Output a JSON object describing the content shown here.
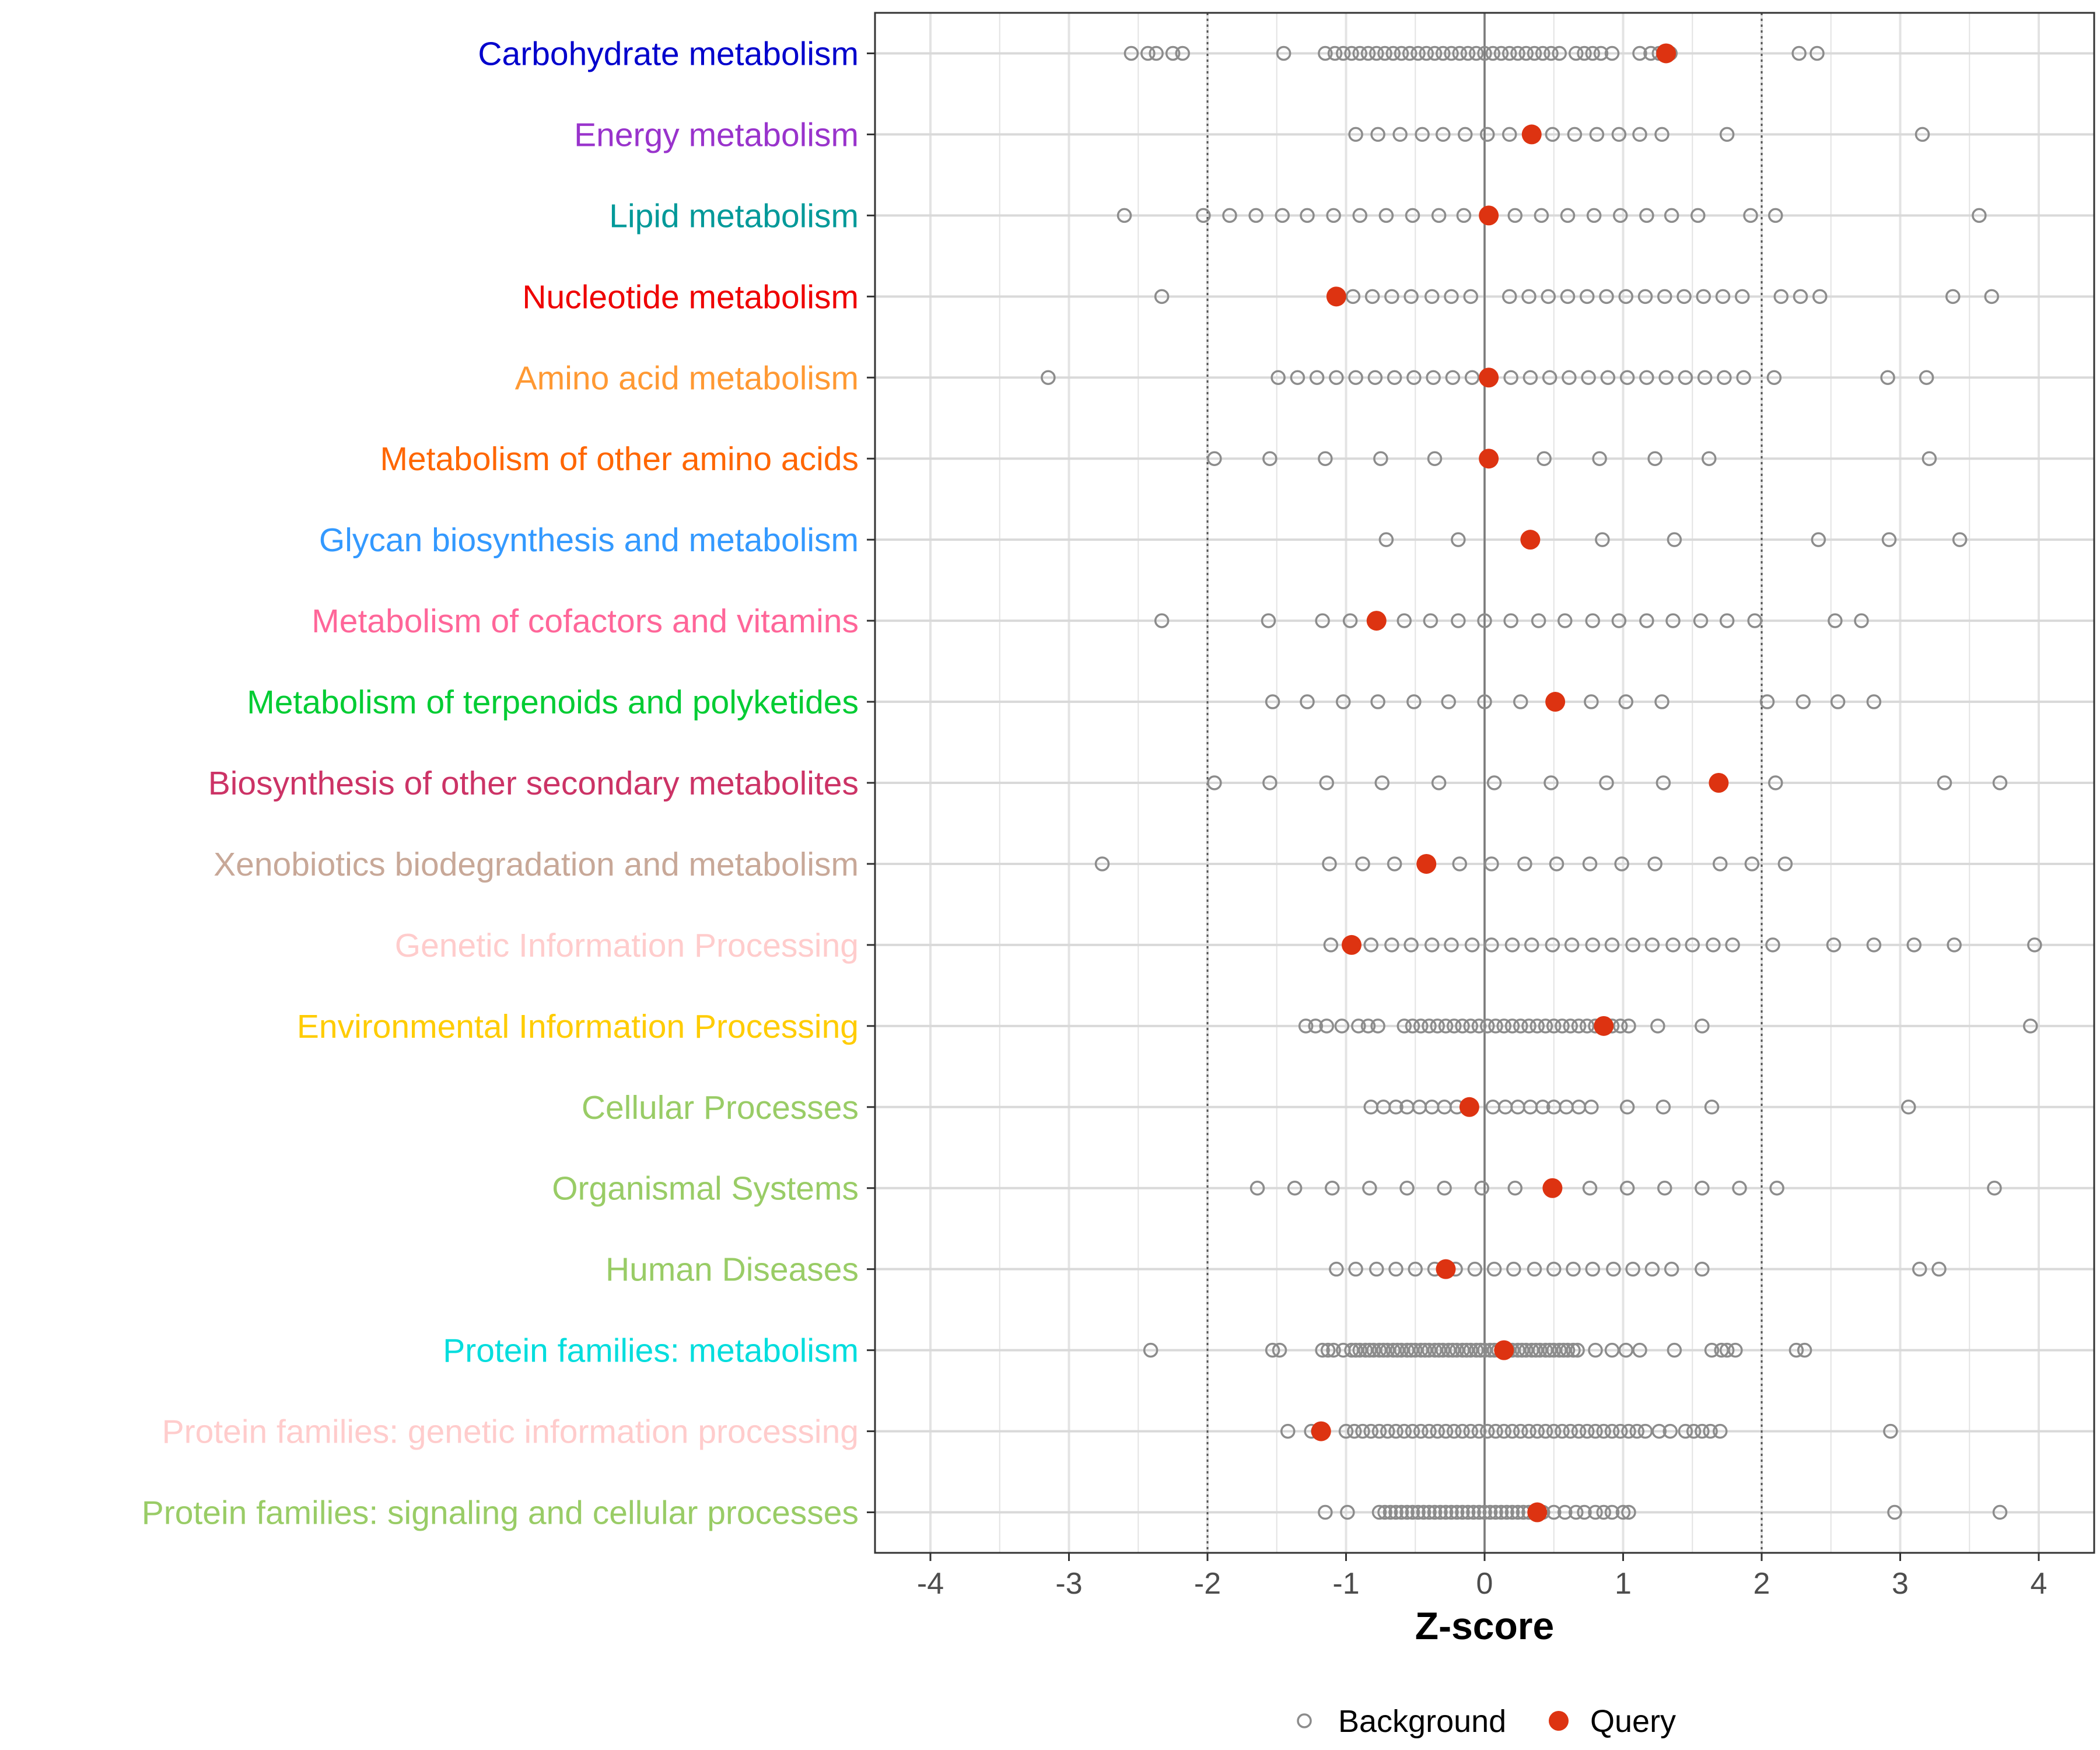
{
  "chart_data": {
    "type": "scatter",
    "xlabel": "Z-score",
    "xlim": [
      -4.4,
      4.4
    ],
    "xticks": [
      -4,
      -3,
      -2,
      -1,
      0,
      1,
      2,
      3,
      4
    ],
    "reference_lines": {
      "solid": [
        0
      ],
      "dotted": [
        -2,
        2
      ]
    },
    "legend": {
      "position": "bottom",
      "entries": [
        "Background",
        "Query"
      ]
    },
    "colors": {
      "background_marker": "#8c8c8c",
      "query_marker": "#dd3311"
    },
    "categories": [
      {
        "name": "Carbohydrate metabolism",
        "color": "#0000cc",
        "query": 1.31,
        "background": [
          -2.55,
          -2.43,
          -2.37,
          -2.25,
          -2.18,
          -1.45,
          -1.15,
          -1.08,
          -1.02,
          -0.96,
          -0.9,
          -0.84,
          -0.78,
          -0.72,
          -0.66,
          -0.6,
          -0.54,
          -0.48,
          -0.42,
          -0.36,
          -0.3,
          -0.24,
          -0.18,
          -0.12,
          -0.06,
          0.0,
          0.06,
          0.12,
          0.18,
          0.24,
          0.3,
          0.36,
          0.42,
          0.48,
          0.54,
          0.66,
          0.72,
          0.78,
          0.84,
          0.92,
          1.12,
          1.2,
          1.26,
          1.34,
          2.27,
          2.4
        ]
      },
      {
        "name": "Energy metabolism",
        "color": "#9933cc",
        "query": 0.34,
        "background": [
          -0.93,
          -0.77,
          -0.61,
          -0.45,
          -0.3,
          -0.14,
          0.02,
          0.18,
          0.49,
          0.65,
          0.81,
          0.97,
          1.12,
          1.28,
          1.75,
          3.16
        ]
      },
      {
        "name": "Lipid metabolism",
        "color": "#009999",
        "query": 0.03,
        "background": [
          -2.6,
          -2.03,
          -1.84,
          -1.65,
          -1.46,
          -1.28,
          -1.09,
          -0.9,
          -0.71,
          -0.52,
          -0.33,
          -0.15,
          0.22,
          0.41,
          0.6,
          0.79,
          0.98,
          1.17,
          1.35,
          1.54,
          1.92,
          2.1,
          3.57
        ]
      },
      {
        "name": "Nucleotide metabolism",
        "color": "#ee0000",
        "query": -1.07,
        "background": [
          -2.33,
          -0.95,
          -0.81,
          -0.67,
          -0.53,
          -0.38,
          -0.24,
          -0.1,
          0.18,
          0.32,
          0.46,
          0.6,
          0.74,
          0.88,
          1.02,
          1.16,
          1.3,
          1.44,
          1.58,
          1.72,
          1.86,
          2.14,
          2.28,
          2.42,
          3.38,
          3.66
        ]
      },
      {
        "name": "Amino acid metabolism",
        "color": "#ff9933",
        "query": 0.03,
        "background": [
          -3.15,
          -1.49,
          -1.35,
          -1.21,
          -1.07,
          -0.93,
          -0.79,
          -0.65,
          -0.51,
          -0.37,
          -0.23,
          -0.09,
          0.19,
          0.33,
          0.47,
          0.61,
          0.75,
          0.89,
          1.03,
          1.17,
          1.31,
          1.45,
          1.59,
          1.73,
          1.87,
          2.09,
          2.91,
          3.19
        ]
      },
      {
        "name": "Metabolism of other amino acids",
        "color": "#ff6600",
        "query": 0.03,
        "background": [
          -1.95,
          -1.55,
          -1.15,
          -0.75,
          -0.36,
          0.43,
          0.83,
          1.23,
          1.62,
          3.21
        ]
      },
      {
        "name": "Glycan biosynthesis and metabolism",
        "color": "#3399ff",
        "query": 0.33,
        "background": [
          -0.71,
          -0.19,
          0.85,
          1.37,
          2.41,
          2.92,
          3.43
        ]
      },
      {
        "name": "Metabolism of cofactors and vitamins",
        "color": "#ff6699",
        "query": -0.78,
        "background": [
          -2.33,
          -1.56,
          -1.17,
          -0.97,
          -0.58,
          -0.39,
          -0.19,
          0.0,
          0.19,
          0.39,
          0.58,
          0.78,
          0.97,
          1.17,
          1.36,
          1.56,
          1.75,
          1.95,
          2.53,
          2.72
        ]
      },
      {
        "name": "Metabolism of terpenoids and polyketides",
        "color": "#00cc33",
        "query": 0.51,
        "background": [
          -1.53,
          -1.28,
          -1.02,
          -0.77,
          -0.51,
          -0.26,
          0.0,
          0.26,
          0.77,
          1.02,
          1.28,
          2.04,
          2.3,
          2.55,
          2.81
        ]
      },
      {
        "name": "Biosynthesis of other secondary metabolites",
        "color": "#cc3366",
        "query": 1.69,
        "background": [
          -1.95,
          -1.55,
          -1.14,
          -0.74,
          -0.33,
          0.07,
          0.48,
          0.88,
          1.29,
          2.1,
          3.32,
          3.72
        ]
      },
      {
        "name": "Xenobiotics biodegradation and metabolism",
        "color": "#c8a898",
        "query": -0.42,
        "background": [
          -2.76,
          -1.12,
          -0.88,
          -0.65,
          -0.18,
          0.05,
          0.29,
          0.52,
          0.76,
          0.99,
          1.23,
          1.7,
          1.93,
          2.17
        ]
      },
      {
        "name": "Genetic Information Processing",
        "color": "#ffcccc",
        "query": -0.96,
        "background": [
          -1.11,
          -0.82,
          -0.67,
          -0.53,
          -0.38,
          -0.24,
          -0.09,
          0.05,
          0.2,
          0.34,
          0.49,
          0.63,
          0.78,
          0.92,
          1.07,
          1.21,
          1.36,
          1.5,
          1.65,
          1.79,
          2.08,
          2.52,
          2.81,
          3.1,
          3.39,
          3.97
        ]
      },
      {
        "name": "Environmental Information Processing",
        "color": "#ffcc00",
        "query": 0.86,
        "background": [
          -1.29,
          -1.22,
          -1.14,
          -1.03,
          -0.91,
          -0.84,
          -0.77,
          -0.58,
          -0.52,
          -0.46,
          -0.4,
          -0.34,
          -0.28,
          -0.22,
          -0.16,
          -0.1,
          -0.04,
          0.02,
          0.08,
          0.14,
          0.2,
          0.26,
          0.32,
          0.38,
          0.44,
          0.5,
          0.56,
          0.62,
          0.68,
          0.74,
          0.8,
          0.92,
          0.98,
          1.04,
          1.25,
          1.57,
          3.94
        ]
      },
      {
        "name": "Cellular Processes",
        "color": "#99cc66",
        "query": -0.11,
        "background": [
          -0.82,
          -0.73,
          -0.64,
          -0.56,
          -0.47,
          -0.38,
          -0.29,
          -0.2,
          0.06,
          0.15,
          0.24,
          0.33,
          0.42,
          0.5,
          0.59,
          0.68,
          0.77,
          1.03,
          1.29,
          1.64,
          3.06
        ]
      },
      {
        "name": "Organismal Systems",
        "color": "#99cc66",
        "query": 0.49,
        "background": [
          -1.64,
          -1.37,
          -1.1,
          -0.83,
          -0.56,
          -0.29,
          -0.02,
          0.22,
          0.76,
          1.03,
          1.3,
          1.57,
          1.84,
          2.11,
          3.68
        ]
      },
      {
        "name": "Human Diseases",
        "color": "#99cc66",
        "query": -0.28,
        "background": [
          -1.07,
          -0.93,
          -0.78,
          -0.64,
          -0.5,
          -0.36,
          -0.21,
          -0.07,
          0.07,
          0.21,
          0.36,
          0.5,
          0.64,
          0.78,
          0.93,
          1.07,
          1.21,
          1.35,
          1.57,
          3.14,
          3.28
        ]
      },
      {
        "name": "Protein families: metabolism",
        "color": "#00dddd",
        "query": 0.14,
        "background": [
          -2.41,
          -1.53,
          -1.48,
          -1.17,
          -1.13,
          -1.09,
          -1.02,
          -0.96,
          -0.93,
          -0.9,
          -0.86,
          -0.83,
          -0.8,
          -0.76,
          -0.73,
          -0.7,
          -0.66,
          -0.63,
          -0.6,
          -0.56,
          -0.53,
          -0.5,
          -0.46,
          -0.43,
          -0.4,
          -0.36,
          -0.33,
          -0.3,
          -0.26,
          -0.23,
          -0.2,
          -0.16,
          -0.13,
          -0.1,
          -0.06,
          -0.03,
          0.0,
          0.04,
          0.07,
          0.1,
          0.14,
          0.17,
          0.2,
          0.24,
          0.27,
          0.3,
          0.34,
          0.37,
          0.4,
          0.44,
          0.47,
          0.5,
          0.54,
          0.57,
          0.6,
          0.64,
          0.67,
          0.8,
          0.92,
          1.02,
          1.12,
          1.37,
          1.64,
          1.71,
          1.75,
          1.81,
          2.25,
          2.31
        ]
      },
      {
        "name": "Protein families: genetic information processing",
        "color": "#ffcccc",
        "query": -1.18,
        "background": [
          -1.42,
          -1.25,
          -1.2,
          -1.0,
          -0.94,
          -0.88,
          -0.82,
          -0.76,
          -0.7,
          -0.64,
          -0.58,
          -0.52,
          -0.46,
          -0.4,
          -0.34,
          -0.28,
          -0.22,
          -0.16,
          -0.1,
          -0.04,
          0.02,
          0.08,
          0.14,
          0.2,
          0.26,
          0.32,
          0.38,
          0.44,
          0.5,
          0.56,
          0.62,
          0.68,
          0.74,
          0.8,
          0.86,
          0.92,
          0.98,
          1.04,
          1.1,
          1.16,
          1.26,
          1.34,
          1.45,
          1.51,
          1.57,
          1.63,
          1.7,
          2.93
        ]
      },
      {
        "name": "Protein families: signaling and cellular processes",
        "color": "#99cc66",
        "query": 0.38,
        "background": [
          -1.15,
          -0.99,
          -0.76,
          -0.72,
          -0.68,
          -0.64,
          -0.6,
          -0.56,
          -0.52,
          -0.48,
          -0.44,
          -0.4,
          -0.36,
          -0.32,
          -0.28,
          -0.24,
          -0.2,
          -0.16,
          -0.12,
          -0.08,
          -0.04,
          0.0,
          0.04,
          0.08,
          0.12,
          0.16,
          0.2,
          0.24,
          0.28,
          0.32,
          0.42,
          0.5,
          0.58,
          0.66,
          0.72,
          0.8,
          0.86,
          0.92,
          1.0,
          1.04,
          2.96,
          3.72
        ]
      }
    ]
  }
}
